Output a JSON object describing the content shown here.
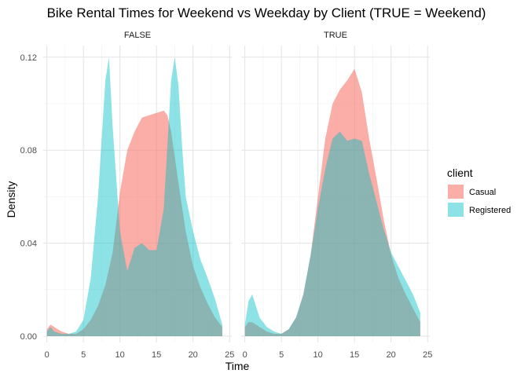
{
  "chart_data": {
    "type": "area",
    "title": "Bike Rental Times for Weekend vs Weekday by Client (TRUE = Weekend)",
    "xlabel": "Time",
    "ylabel": "Density",
    "xlim": [
      0,
      24
    ],
    "ylim": [
      0,
      0.125
    ],
    "x_ticks": [
      "0",
      "5",
      "10",
      "15",
      "20",
      "25"
    ],
    "y_ticks": [
      "0.00",
      "0.04",
      "0.08",
      "0.12"
    ],
    "legend": {
      "title": "client",
      "position": "right",
      "items": [
        {
          "name": "Casual",
          "color": "#F8766D"
        },
        {
          "name": "Registered",
          "color": "#00BFC4"
        }
      ]
    },
    "grid": true,
    "facets": [
      {
        "label": "FALSE",
        "series": [
          {
            "name": "Casual",
            "color": "#F8766D",
            "x": [
              0,
              0.5,
              1,
              2,
              3,
              4,
              5,
              6,
              7,
              8,
              9,
              10,
              11,
              12,
              13,
              14,
              15,
              16,
              16.5,
              17,
              18,
              19,
              20,
              21,
              22,
              23,
              24
            ],
            "y": [
              0.003,
              0.005,
              0.004,
              0.002,
              0.001,
              0.001,
              0.003,
              0.007,
              0.013,
              0.022,
              0.036,
              0.062,
              0.08,
              0.088,
              0.094,
              0.095,
              0.096,
              0.097,
              0.095,
              0.088,
              0.066,
              0.045,
              0.03,
              0.021,
              0.014,
              0.008,
              0.004
            ]
          },
          {
            "name": "Registered",
            "color": "#00BFC4",
            "x": [
              0,
              0.5,
              1,
              2,
              3,
              4,
              5,
              6,
              7,
              7.5,
              8,
              8.5,
              9,
              10,
              11,
              12,
              13,
              14,
              15,
              16,
              17,
              17.5,
              18,
              18.5,
              19,
              20,
              21,
              22,
              23,
              24
            ],
            "y": [
              0.002,
              0.004,
              0.002,
              0.001,
              0.001,
              0.002,
              0.007,
              0.025,
              0.06,
              0.085,
              0.11,
              0.12,
              0.09,
              0.045,
              0.028,
              0.038,
              0.04,
              0.037,
              0.037,
              0.055,
              0.11,
              0.12,
              0.108,
              0.082,
              0.06,
              0.045,
              0.033,
              0.025,
              0.016,
              0.005
            ]
          }
        ]
      },
      {
        "label": "TRUE",
        "series": [
          {
            "name": "Casual",
            "color": "#F8766D",
            "x": [
              0,
              0.5,
              1,
              2,
              3,
              4,
              5,
              6,
              7,
              8,
              9,
              10,
              11,
              12,
              13,
              14,
              15,
              16,
              17,
              18,
              19,
              20,
              21,
              22,
              23,
              24
            ],
            "y": [
              0.004,
              0.006,
              0.006,
              0.004,
              0.002,
              0.001,
              0.001,
              0.003,
              0.008,
              0.018,
              0.035,
              0.06,
              0.085,
              0.1,
              0.106,
              0.11,
              0.115,
              0.105,
              0.085,
              0.068,
              0.05,
              0.035,
              0.025,
              0.018,
              0.012,
              0.006
            ]
          },
          {
            "name": "Registered",
            "color": "#00BFC4",
            "x": [
              0,
              0.5,
              1,
              2,
              3,
              4,
              5,
              6,
              7,
              8,
              9,
              10,
              11,
              12,
              13,
              14,
              15,
              16,
              17,
              18,
              19,
              20,
              21,
              22,
              23,
              24
            ],
            "y": [
              0.005,
              0.015,
              0.018,
              0.008,
              0.004,
              0.002,
              0.001,
              0.003,
              0.008,
              0.018,
              0.035,
              0.055,
              0.072,
              0.085,
              0.088,
              0.084,
              0.085,
              0.084,
              0.07,
              0.058,
              0.046,
              0.036,
              0.03,
              0.024,
              0.018,
              0.01
            ]
          }
        ]
      }
    ]
  }
}
